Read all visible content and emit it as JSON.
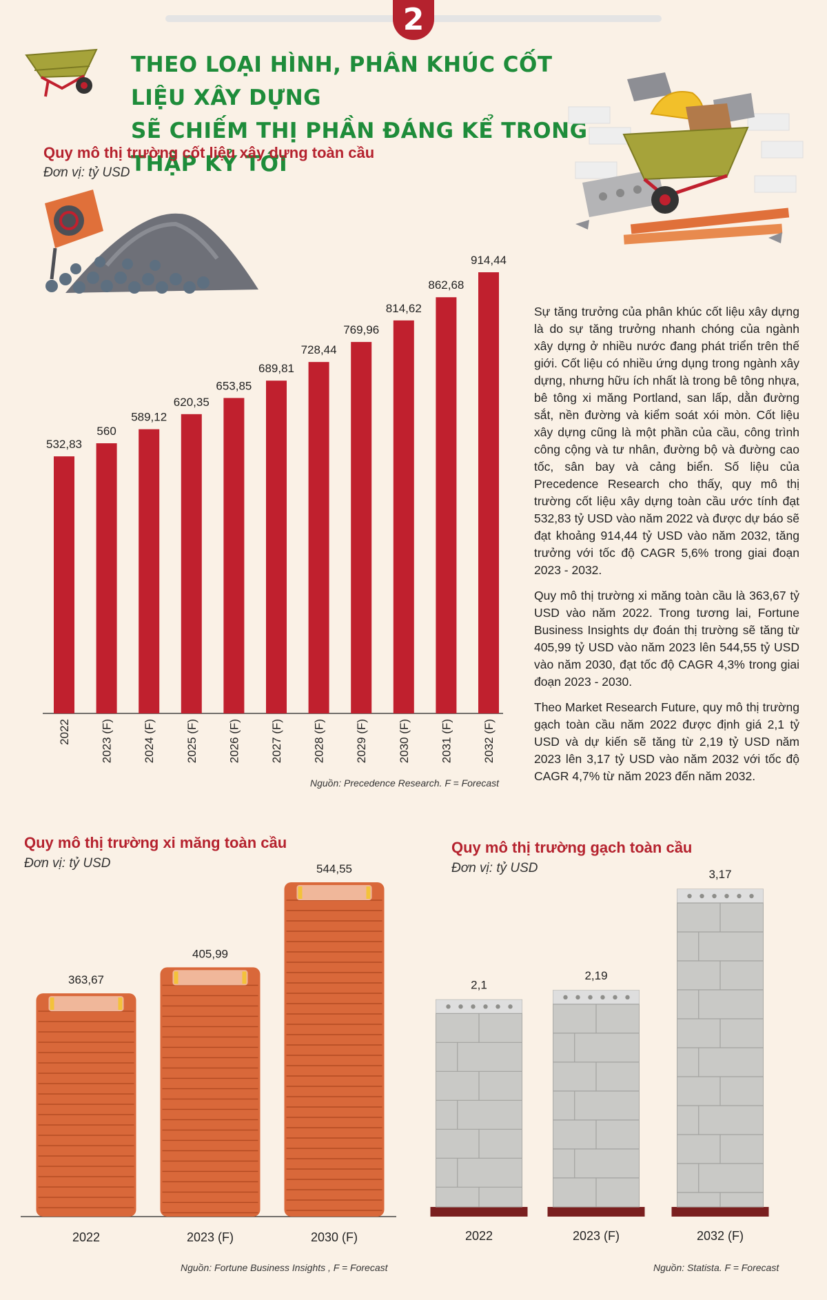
{
  "badge": "2",
  "title_lines": [
    "THEO LOẠI HÌNH, PHÂN KHÚC CỐT LIỆU XÂY DỰNG",
    "SẼ CHIẾM THỊ PHẦN ĐÁNG KỂ TRONG THẬP KỶ TỚI"
  ],
  "paragraphs": [
    "Sự tăng trưởng của phân khúc cốt liệu xây dựng là do sự tăng trưởng nhanh chóng của ngành xây dựng ở nhiều nước đang phát triển trên thế giới. Cốt liệu có nhiều ứng dụng trong ngành xây dựng, nhưng hữu ích nhất là trong bê tông nhựa, bê tông xi măng Portland, san lấp, dằn đường sắt, nền đường và kiểm soát xói mòn. Cốt liệu xây dựng cũng là một phần của cầu, công trình công cộng và tư nhân, đường bộ và đường cao tốc, sân bay và cảng biển. Số liệu của Precedence Research cho thấy, quy mô thị trường cốt liệu xây dựng toàn cầu ước tính đạt 532,83 tỷ USD vào năm 2022 và được dự báo sẽ đạt khoảng 914,44 tỷ USD vào năm 2032, tăng trưởng với tốc độ CAGR 5,6% trong giai đoạn 2023 - 2032.",
    "Quy mô thị trường xi măng toàn cầu là 363,67 tỷ USD vào năm 2022. Trong tương lai, Fortune Business Insights dự đoán thị trường sẽ tăng từ 405,99 tỷ USD vào năm 2023 lên 544,55 tỷ USD vào năm 2030, đạt tốc độ CAGR 4,3% trong giai đoạn 2023 - 2030.",
    "Theo Market Research Future, quy mô thị trường gạch toàn cầu năm 2022 được định giá 2,1 tỷ USD và dự kiến sẽ tăng từ 2,19 tỷ USD năm 2023 lên 3,17 tỷ USD vào năm 2032 với tốc độ CAGR 4,7% từ năm 2023 đến năm 2032."
  ],
  "chart_data": [
    {
      "type": "bar",
      "title": "Quy mô thị trường cốt liệu xây dựng toàn cầu",
      "unit": "Đơn vị: tỷ USD",
      "source": "Nguồn: Precedence Research. F = Forecast",
      "categories": [
        "2022",
        "2023 (F)",
        "2024 (F)",
        "2025 (F)",
        "2026 (F)",
        "2027 (F)",
        "2028 (F)",
        "2029 (F)",
        "2030 (F)",
        "2031 (F)",
        "2032 (F)"
      ],
      "values": [
        532.83,
        560,
        589.12,
        620.35,
        653.85,
        689.81,
        728.44,
        769.96,
        814.62,
        862.68,
        914.44
      ],
      "labels": [
        "532,83",
        "560",
        "589,12",
        "620,35",
        "653,85",
        "689,81",
        "728,44",
        "769,96",
        "814,62",
        "862,68",
        "914,44"
      ],
      "color": "#c0202e"
    },
    {
      "type": "bar",
      "title": "Quy mô thị trường xi măng toàn cầu",
      "unit": "Đơn vị: tỷ USD",
      "source": "Nguồn: Fortune Business Insights , F = Forecast",
      "categories": [
        "2022",
        "2023 (F)",
        "2030 (F)"
      ],
      "values": [
        363.67,
        405.99,
        544.55
      ],
      "labels": [
        "363,67",
        "405,99",
        "544,55"
      ],
      "color": "#d9683a"
    },
    {
      "type": "bar",
      "title": "Quy mô thị trường gạch toàn cầu",
      "unit": "Đơn vị: tỷ USD",
      "source": "Nguồn: Statista. F = Forecast",
      "categories": [
        "2022",
        "2023 (F)",
        "2032 (F)"
      ],
      "values": [
        2.1,
        2.19,
        3.17
      ],
      "labels": [
        "2,1",
        "2,19",
        "3,17"
      ],
      "color": "#c9c9c6"
    }
  ]
}
